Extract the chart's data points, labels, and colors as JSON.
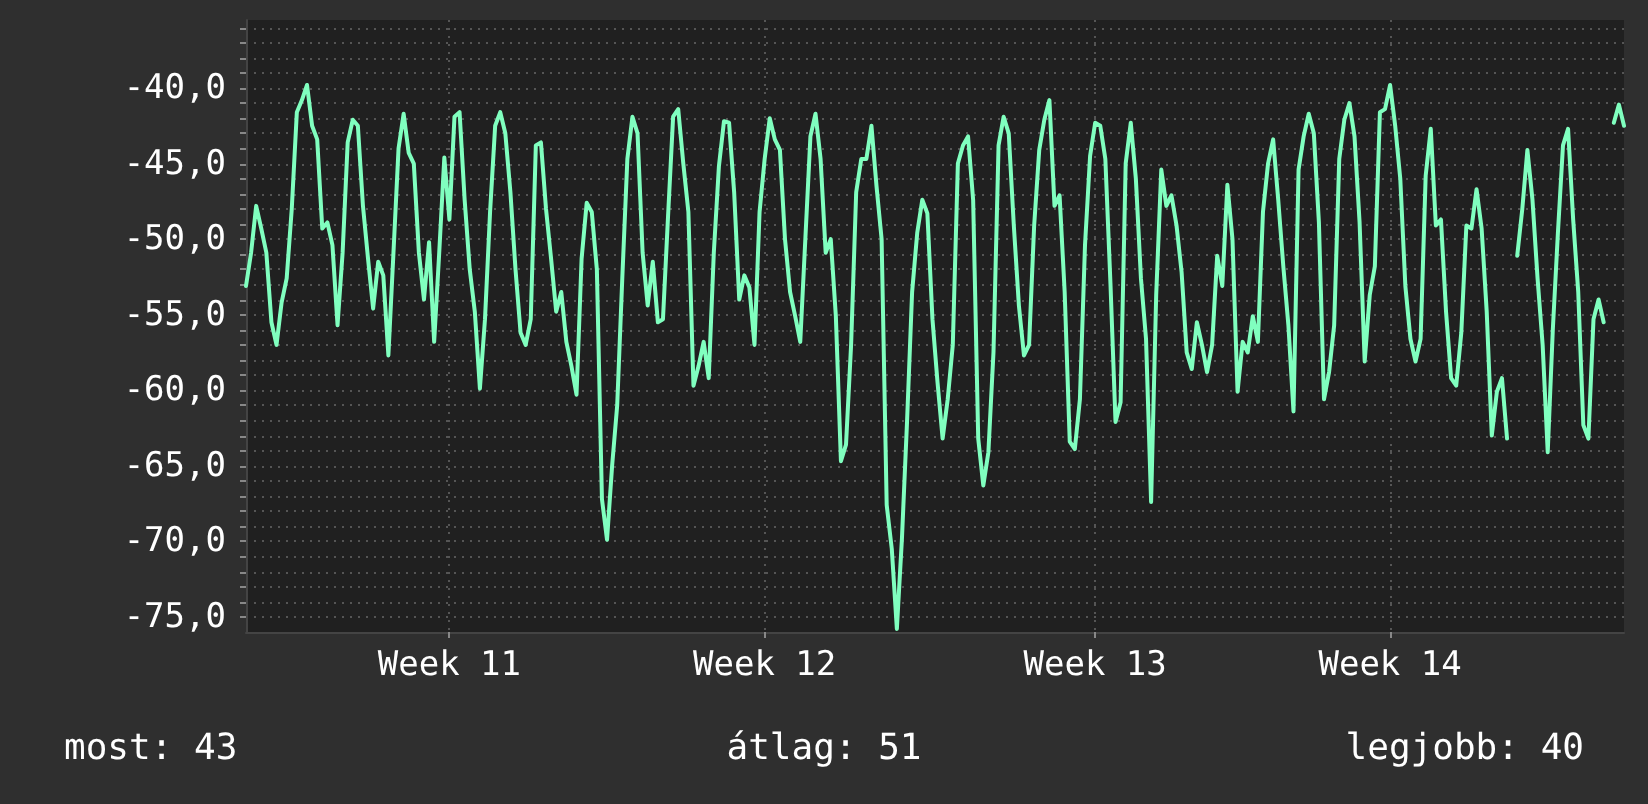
{
  "chart_data": {
    "type": "line",
    "categories": [
      null,
      null,
      null,
      null,
      null,
      null,
      null,
      null,
      null,
      null,
      null,
      null,
      null,
      null,
      null,
      null,
      null,
      null,
      null,
      null,
      null,
      null,
      null,
      null,
      null,
      null,
      null,
      null,
      null,
      null,
      null,
      null,
      null,
      null,
      null,
      null,
      null,
      null,
      null,
      null,
      "Week 11",
      null,
      null,
      null,
      null,
      null,
      null,
      null,
      null,
      null,
      null,
      null,
      null,
      null,
      null,
      null,
      null,
      null,
      null,
      null,
      null,
      null,
      null,
      null,
      null,
      null,
      null,
      null,
      null,
      null,
      null,
      null,
      null,
      null,
      null,
      null,
      null,
      null,
      null,
      null,
      null,
      null,
      null,
      null,
      null,
      null,
      null,
      null,
      null,
      null,
      null,
      null,
      null,
      null,
      null,
      null,
      null,
      null,
      null,
      null,
      null,
      null,
      "Week 12",
      null,
      null,
      null,
      null,
      null,
      null,
      null,
      null,
      null,
      null,
      null,
      null,
      null,
      null,
      null,
      null,
      null,
      null,
      null,
      null,
      null,
      null,
      null,
      null,
      null,
      null,
      null,
      null,
      null,
      null,
      null,
      null,
      null,
      null,
      null,
      null,
      null,
      null,
      null,
      null,
      null,
      null,
      null,
      null,
      null,
      null,
      null,
      null,
      null,
      null,
      null,
      null,
      null,
      null,
      null,
      null,
      null,
      null,
      null,
      null,
      null,
      null,
      null,
      null,
      "Week 13",
      null,
      null,
      null,
      null,
      null,
      null,
      null,
      null,
      null,
      null,
      null,
      null,
      null,
      null,
      null,
      null,
      null,
      null,
      null,
      null,
      null,
      null,
      null,
      null,
      null,
      null,
      null,
      null,
      null,
      null,
      null,
      null,
      null,
      null,
      null,
      null,
      null,
      null,
      null,
      null,
      null,
      null,
      null,
      null,
      null,
      null,
      null,
      null,
      null,
      null,
      null,
      null,
      null,
      null,
      null,
      null,
      null,
      "Week 14",
      null,
      null,
      null,
      null,
      null,
      null,
      null,
      null,
      null,
      null,
      null,
      null,
      null,
      null,
      null,
      null,
      null,
      null,
      null,
      null,
      null,
      null,
      null,
      null,
      null,
      null,
      null,
      null,
      null,
      null,
      null,
      null,
      null,
      null,
      null,
      null,
      null,
      null,
      null,
      null,
      null,
      null,
      null,
      null,
      null,
      null
    ],
    "series": [
      {
        "color": "#80ffbf",
        "values": [
          -53.1,
          -50.9,
          -47.8,
          -49.3,
          -50.9,
          -55.5,
          -57.0,
          -54.2,
          -52.6,
          -48.0,
          -41.6,
          -40.8,
          -39.8,
          -42.5,
          -43.4,
          -49.3,
          -48.9,
          -50.4,
          -55.7,
          -50.9,
          -43.6,
          -42.1,
          -42.5,
          -47.8,
          -51.3,
          -54.6,
          -51.5,
          -52.4,
          -57.7,
          -50.9,
          -44.0,
          -41.7,
          -44.3,
          -45.0,
          -50.9,
          -54.0,
          -50.2,
          -56.8,
          -50.9,
          -44.6,
          -48.7,
          -41.9,
          -41.6,
          -47.4,
          -52.0,
          -54.8,
          -59.9,
          -55.3,
          -48.2,
          -42.5,
          -41.6,
          -43.0,
          -46.9,
          -52.0,
          -56.2,
          -57.0,
          -55.3,
          -43.8,
          -43.6,
          -48.0,
          -51.3,
          -54.8,
          -53.5,
          -56.8,
          -58.4,
          -60.3,
          -51.3,
          -47.6,
          -48.2,
          -52.0,
          -67.2,
          -69.9,
          -65.0,
          -61.0,
          -52.6,
          -44.7,
          -41.9,
          -43.0,
          -50.9,
          -54.4,
          -51.5,
          -55.5,
          -55.3,
          -48.5,
          -41.9,
          -41.4,
          -45.0,
          -48.2,
          -59.7,
          -58.4,
          -56.8,
          -59.2,
          -50.9,
          -45.2,
          -42.2,
          -42.3,
          -46.9,
          -54.0,
          -52.4,
          -53.2,
          -57.0,
          -48.2,
          -44.7,
          -42.0,
          -43.4,
          -44.1,
          -50.0,
          -53.5,
          -55.1,
          -56.8,
          -50.0,
          -43.2,
          -41.7,
          -44.7,
          -50.9,
          -50.0,
          -55.1,
          -64.7,
          -63.6,
          -57.0,
          -46.9,
          -44.7,
          -44.7,
          -42.5,
          -46.5,
          -50.0,
          -67.6,
          -70.5,
          -75.8,
          -69.8,
          -62.1,
          -53.5,
          -49.6,
          -47.4,
          -48.3,
          -55.3,
          -59.5,
          -63.2,
          -60.6,
          -57.0,
          -45.0,
          -43.8,
          -43.2,
          -47.4,
          -63.2,
          -66.3,
          -64.1,
          -57.5,
          -43.8,
          -41.9,
          -43.0,
          -49.1,
          -54.4,
          -57.7,
          -57.0,
          -49.1,
          -44.1,
          -42.1,
          -40.8,
          -47.8,
          -47.1,
          -53.5,
          -63.4,
          -63.9,
          -60.6,
          -50.4,
          -44.5,
          -42.3,
          -42.5,
          -44.7,
          -52.9,
          -62.1,
          -60.8,
          -45.0,
          -42.3,
          -46.0,
          -52.6,
          -56.6,
          -67.4,
          -53.7,
          -45.4,
          -47.8,
          -47.1,
          -49.1,
          -52.2,
          -57.5,
          -58.6,
          -55.5,
          -57.0,
          -58.8,
          -57.0,
          -51.1,
          -53.1,
          -46.4,
          -50.0,
          -60.1,
          -56.8,
          -57.5,
          -55.1,
          -56.8,
          -48.2,
          -45.0,
          -43.4,
          -47.4,
          -51.8,
          -55.7,
          -61.4,
          -45.4,
          -43.2,
          -41.7,
          -43.0,
          -48.9,
          -60.6,
          -58.8,
          -55.7,
          -44.7,
          -42.1,
          -41.0,
          -43.2,
          -48.9,
          -58.1,
          -53.7,
          -51.8,
          -41.6,
          -41.4,
          -39.8,
          -42.5,
          -46.0,
          -53.1,
          -56.6,
          -58.1,
          -56.6,
          -45.8,
          -42.7,
          -49.1,
          -48.7,
          -54.8,
          -59.2,
          -59.7,
          -56.2,
          -49.1,
          -49.3,
          -46.7,
          -49.3,
          -54.8,
          -63.0,
          -60.1,
          -59.2,
          -63.2,
          null,
          -51.1,
          -48.0,
          -44.1,
          -47.4,
          -52.6,
          -57.0,
          -64.1,
          -56.0,
          -49.6,
          -43.8,
          -42.7,
          -48.7,
          -53.5,
          -62.3,
          -63.2,
          -55.3,
          -54.0,
          -55.5,
          null,
          -42.3,
          -41.1,
          -42.5
        ]
      }
    ],
    "ylim": [
      -76,
      -35.5
    ],
    "yticks": [
      {
        "value": -75,
        "label": "-75,0"
      },
      {
        "value": -74,
        "label": null
      },
      {
        "value": -73,
        "label": null
      },
      {
        "value": -72,
        "label": null
      },
      {
        "value": -71,
        "label": null
      },
      {
        "value": -70,
        "label": "-70,0"
      },
      {
        "value": -69,
        "label": null
      },
      {
        "value": -68,
        "label": null
      },
      {
        "value": -67,
        "label": null
      },
      {
        "value": -66,
        "label": null
      },
      {
        "value": -65,
        "label": "-65,0"
      },
      {
        "value": -64,
        "label": null
      },
      {
        "value": -63,
        "label": null
      },
      {
        "value": -62,
        "label": null
      },
      {
        "value": -61,
        "label": null
      },
      {
        "value": -60,
        "label": "-60,0"
      },
      {
        "value": -59,
        "label": null
      },
      {
        "value": -58,
        "label": null
      },
      {
        "value": -57,
        "label": null
      },
      {
        "value": -56,
        "label": null
      },
      {
        "value": -55,
        "label": "-55,0"
      },
      {
        "value": -54,
        "label": null
      },
      {
        "value": -53,
        "label": null
      },
      {
        "value": -52,
        "label": null
      },
      {
        "value": -51,
        "label": null
      },
      {
        "value": -50,
        "label": "-50,0"
      },
      {
        "value": -49,
        "label": null
      },
      {
        "value": -48,
        "label": null
      },
      {
        "value": -47,
        "label": null
      },
      {
        "value": -46,
        "label": null
      },
      {
        "value": -45,
        "label": "-45,0"
      },
      {
        "value": -44,
        "label": null
      },
      {
        "value": -43,
        "label": null
      },
      {
        "value": -42,
        "label": null
      },
      {
        "value": -41,
        "label": null
      },
      {
        "value": -40,
        "label": "-40,0"
      },
      {
        "value": -39,
        "label": null
      },
      {
        "value": -38,
        "label": null
      },
      {
        "value": -37,
        "label": null
      },
      {
        "value": -36,
        "label": null
      }
    ],
    "grid": true,
    "marker": "none",
    "line_style": "solid",
    "annotations": [
      "most: 43",
      "átlag: 51",
      "legjobb: 40"
    ]
  }
}
